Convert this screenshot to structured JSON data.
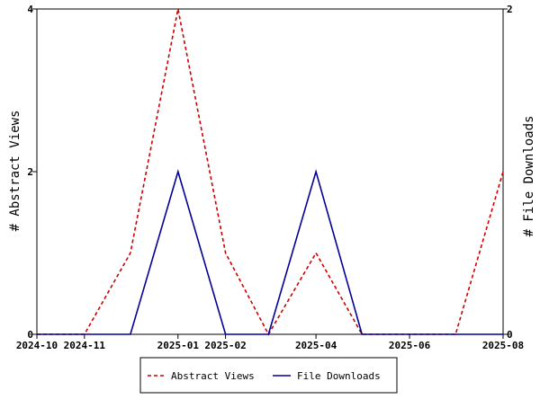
{
  "chart_data": {
    "type": "line",
    "title": "",
    "x": [
      "2024-10",
      "2024-11",
      "2024-12",
      "2025-01",
      "2025-02",
      "2025-03",
      "2025-04",
      "2025-05",
      "2025-06",
      "2025-07",
      "2025-08"
    ],
    "x_tick_labels": [
      "2024-10",
      "2024-11",
      "2025-01",
      "2025-02",
      "2025-04",
      "2025-06",
      "2025-08"
    ],
    "xlim": [
      "2024-10-01",
      "2025-08-01"
    ],
    "ylabel_left": "# Abstract Views",
    "ylabel_right": "# File Downloads",
    "ylim_left": [
      0,
      4
    ],
    "ylim_right": [
      0,
      2
    ],
    "y_ticks_left": [
      "0",
      "2",
      "4"
    ],
    "y_ticks_right": [
      "0",
      "2"
    ],
    "series": [
      {
        "name": "Abstract Views",
        "axis": "left",
        "color": "#cc0000",
        "dashed": true,
        "values": [
          0,
          0,
          1,
          4,
          1,
          0,
          1,
          0,
          0,
          0,
          2
        ]
      },
      {
        "name": "File Downloads",
        "axis": "right",
        "color": "#000099",
        "dashed": false,
        "values": [
          0,
          0,
          0,
          1,
          0,
          0,
          1,
          0,
          0,
          0,
          0
        ]
      }
    ],
    "legend_position": "bottom-center",
    "grid": false
  }
}
